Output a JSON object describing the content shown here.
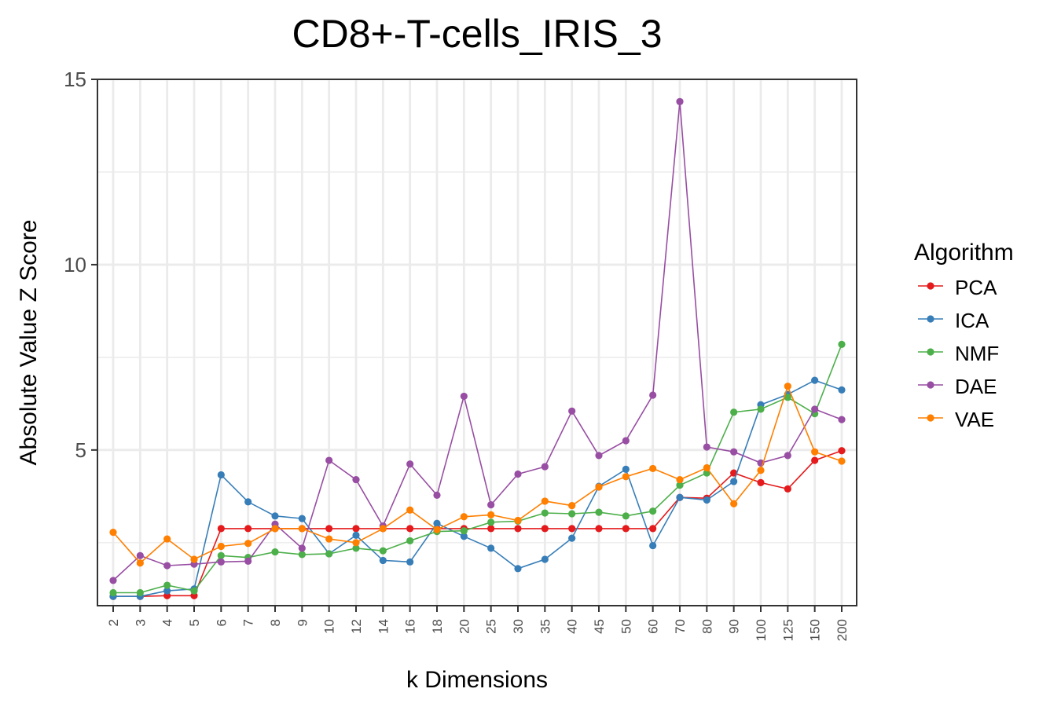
{
  "chart_data": {
    "type": "line",
    "title": "CD8+-T-cells_IRIS_3",
    "xlabel": "k Dimensions",
    "ylabel": "Absolute Value Z Score",
    "categories": [
      "2",
      "3",
      "4",
      "5",
      "6",
      "7",
      "8",
      "9",
      "10",
      "12",
      "14",
      "16",
      "18",
      "20",
      "25",
      "30",
      "35",
      "40",
      "45",
      "50",
      "60",
      "70",
      "80",
      "90",
      "100",
      "125",
      "150",
      "200"
    ],
    "ylim": [
      0.8,
      15
    ],
    "yticks": [
      5,
      10,
      15
    ],
    "grid": true,
    "legend_title": "Algorithm",
    "legend_position": "right",
    "series": [
      {
        "name": "PCA",
        "color": "#e41a1c",
        "values": [
          1.05,
          1.05,
          1.07,
          1.07,
          2.88,
          2.88,
          2.88,
          2.88,
          2.88,
          2.88,
          2.88,
          2.88,
          2.88,
          2.88,
          2.88,
          2.88,
          2.88,
          2.88,
          2.88,
          2.88,
          2.88,
          3.72,
          3.7,
          4.38,
          4.12,
          3.95,
          4.72,
          4.98
        ]
      },
      {
        "name": "ICA",
        "color": "#377eb8",
        "values": [
          1.05,
          1.05,
          1.2,
          1.25,
          4.33,
          3.6,
          3.22,
          3.15,
          2.2,
          2.7,
          2.02,
          1.98,
          3.02,
          2.67,
          2.35,
          1.8,
          2.05,
          2.62,
          4.02,
          4.48,
          2.42,
          3.72,
          3.65,
          4.15,
          6.22,
          6.5,
          6.88,
          6.62
        ]
      },
      {
        "name": "NMF",
        "color": "#4daf4a",
        "values": [
          1.15,
          1.15,
          1.35,
          1.2,
          2.15,
          2.1,
          2.25,
          2.18,
          2.2,
          2.35,
          2.28,
          2.55,
          2.8,
          2.82,
          3.05,
          3.08,
          3.3,
          3.28,
          3.32,
          3.22,
          3.35,
          4.05,
          4.38,
          6.02,
          6.1,
          6.42,
          5.98,
          7.85
        ]
      },
      {
        "name": "DAE",
        "color": "#984ea3",
        "values": [
          1.48,
          2.15,
          1.88,
          1.92,
          1.98,
          2.0,
          3.0,
          2.35,
          4.72,
          4.2,
          2.95,
          4.62,
          3.78,
          6.45,
          3.52,
          4.35,
          4.55,
          6.05,
          4.85,
          5.25,
          6.48,
          14.4,
          5.08,
          4.95,
          4.65,
          4.85,
          6.1,
          5.82
        ]
      },
      {
        "name": "VAE",
        "color": "#ff7f00",
        "values": [
          2.78,
          1.95,
          2.6,
          2.05,
          2.4,
          2.48,
          2.88,
          2.88,
          2.6,
          2.5,
          2.88,
          3.38,
          2.85,
          3.2,
          3.25,
          3.1,
          3.62,
          3.5,
          4.0,
          4.28,
          4.5,
          4.2,
          4.52,
          3.55,
          4.45,
          6.72,
          4.95,
          4.7
        ]
      }
    ]
  }
}
